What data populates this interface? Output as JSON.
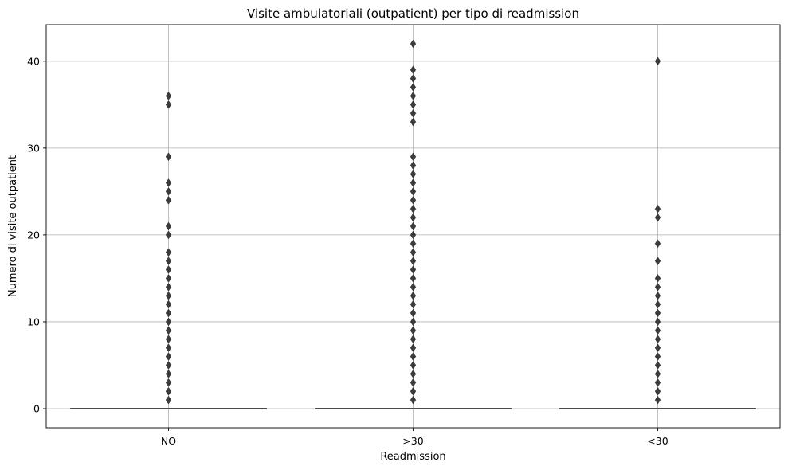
{
  "chart_data": {
    "type": "box",
    "title": "Visite ambulatoriali (outpatient) per tipo di readmission",
    "xlabel": "Readmission",
    "ylabel": "Numero di visite outpatient",
    "categories": [
      "NO",
      ">30",
      "<30"
    ],
    "ylim": [
      -2.2,
      44.2
    ],
    "yticks": [
      0,
      10,
      20,
      30,
      40
    ],
    "grid": true,
    "colors": {
      "box": "#3b3b3b",
      "outlier": "#3b3b3b",
      "grid": "#b0b0b0",
      "axes": "#000000"
    },
    "series": [
      {
        "category": "NO",
        "q1": 0,
        "median": 0,
        "q3": 0,
        "whisker_low": 0,
        "whisker_high": 0,
        "outliers": [
          1,
          2,
          3,
          4,
          5,
          6,
          7,
          8,
          9,
          10,
          11,
          12,
          13,
          14,
          15,
          16,
          17,
          18,
          20,
          21,
          24,
          25,
          26,
          29,
          35,
          36
        ]
      },
      {
        "category": ">30",
        "q1": 0,
        "median": 0,
        "q3": 0,
        "whisker_low": 0,
        "whisker_high": 0,
        "outliers": [
          1,
          2,
          3,
          4,
          5,
          6,
          7,
          8,
          9,
          10,
          11,
          12,
          13,
          14,
          15,
          16,
          17,
          18,
          19,
          20,
          21,
          22,
          23,
          24,
          25,
          26,
          27,
          28,
          29,
          33,
          34,
          35,
          36,
          37,
          38,
          39,
          42
        ]
      },
      {
        "category": "<30",
        "q1": 0,
        "median": 0,
        "q3": 0,
        "whisker_low": 0,
        "whisker_high": 0,
        "outliers": [
          1,
          2,
          3,
          4,
          5,
          6,
          7,
          8,
          9,
          10,
          11,
          12,
          13,
          14,
          15,
          17,
          19,
          22,
          23,
          40
        ]
      }
    ]
  }
}
